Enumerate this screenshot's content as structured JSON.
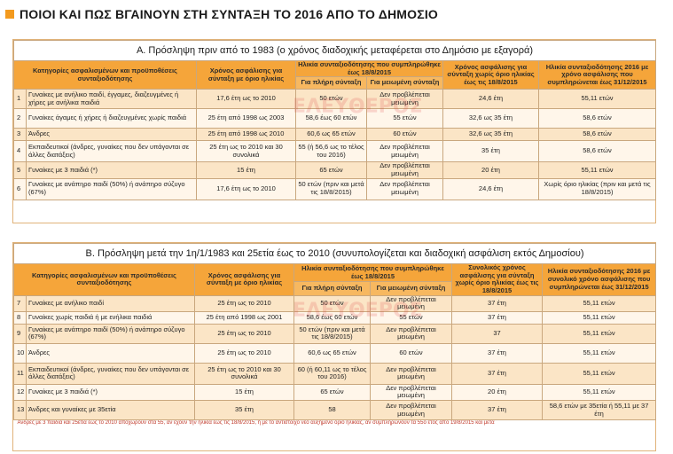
{
  "page_title": "ΠΟΙΟΙ ΚΑΙ ΠΩΣ ΒΓΑΙΝΟΥΝ ΣΤΗ ΣΥΝΤΑΞΗ ΤΟ 2016 ΑΠΟ ΤΟ ΔΗΜΟΣΙΟ",
  "watermark": "ΕΛΕΥΘΕΡΟΣ",
  "blockA": {
    "title": "Α. Πρόσληψη πριν από το 1983 (ο χρόνος διαδοχικής μεταφέρεται στο Δημόσιο με εξαγορά)",
    "headers": {
      "category": "Κατηγορίες ασφαλισμένων και προϋποθέσεις συνταξιοδότησης",
      "insurance_time": "Χρόνος ασφάλισης για σύνταξη με όριο ηλικίας",
      "age_group": "Ηλικία συνταξιοδότησης που συμπληρώθηκε έως 18/8/2015",
      "full": "Για πλήρη σύνταξη",
      "reduced": "Για μειωμένη σύνταξη",
      "time_no_limit": "Χρόνος ασφάλισης για σύνταξη χωρίς όριο ηλικίας έως τις 18/8/2015",
      "age_2016": "Ηλικία συνταξιοδότησης 2016 με χρόνο ασφάλισης που συμπληρώνεται έως 31/12/2015"
    },
    "rows": [
      {
        "n": "1",
        "cat": "Γυναίκες με ανήλικο παιδί, έγγαμες, διαζευγμένες ή χήρες με ανήλικα παιδιά",
        "ins": "17,6 έτη ως το 2010",
        "full": "50 ετών",
        "red": "Δεν προβλέπεται μειωμένη",
        "tnl": "24,6 έτη",
        "age": "55,11 ετών"
      },
      {
        "n": "2",
        "cat": "Γυναίκες άγαμες ή χήρες ή διαζευγμένες χωρίς παιδιά",
        "ins": "25 έτη από 1998 ως 2003",
        "full": "58,6 έως 60 ετών",
        "red": "55 ετών",
        "tnl": "32,6 ως 35 έτη",
        "age": "58,6 ετών"
      },
      {
        "n": "3",
        "cat": "Άνδρες",
        "ins": "25 έτη από 1998 ως 2010",
        "full": "60,6 ως 65 ετών",
        "red": "60 ετών",
        "tnl": "32,6 ως 35 έτη",
        "age": "58,6 ετών"
      },
      {
        "n": "4",
        "cat": "Εκπαιδευτικοί (άνδρες, γυναίκες που δεν υπάγονται σε άλλες διατάξεις)",
        "ins": "25 έτη ως το 2010 και 30 συνολικά",
        "full": "55 (ή 56,6 ως το τέλος του 2016)",
        "red": "Δεν προβλέπεται μειωμένη",
        "tnl": "35 έτη",
        "age": "58,6 ετών"
      },
      {
        "n": "5",
        "cat": "Γυναίκες με 3 παιδιά (*)",
        "ins": "15 έτη",
        "full": "65 ετών",
        "red": "Δεν προβλέπεται μειωμένη",
        "tnl": "20 έτη",
        "age": "55,11 ετών"
      },
      {
        "n": "6",
        "cat": "Γυναίκες με ανάπηρο παιδί (50%) ή ανάπηρο σύζυγο (67%)",
        "ins": "17,6 έτη ως το 2010",
        "full": "50 ετών (πριν και μετά τις 18/8/2015)",
        "red": "Δεν προβλέπεται μειωμένη",
        "tnl": "24,6 έτη",
        "age": "Χωρίς όριο ηλικίας (πριν και μετά τις 18/8/2015)"
      }
    ]
  },
  "blockB": {
    "title": "Β. Πρόσληψη μετά την 1η/1/1983 και 25ετία έως το 2010 (συνυπολογίζεται και διαδοχική ασφάλιση εκτός Δημοσίου)",
    "headers": {
      "category": "Κατηγορίες ασφαλισμένων και προϋποθέσεις συνταξιοδότησης",
      "insurance_time": "Χρόνος ασφάλισης για σύνταξη με όριο ηλικίας",
      "age_group": "Ηλικία συνταξιοδότησης που συμπληρώθηκε έως 18/8/2015",
      "full": "Για πλήρη σύνταξη",
      "reduced": "Για μειωμένη σύνταξη",
      "time_no_limit": "Συνολικός χρόνος ασφάλισης για σύνταξη χωρίς όριο ηλικίας έως τις 18/8/2015",
      "age_2016": "Ηλικία συνταξιοδότησης 2016 με συνολικό χρόνο ασφάλισης που συμπληρώνεται έως 31/12/2015"
    },
    "rows": [
      {
        "n": "7",
        "cat": "Γυναίκες με ανήλικο παιδί",
        "ins": "25 έτη ως το 2010",
        "full": "50 ετών",
        "red": "Δεν προβλέπεται μειωμένη",
        "tnl": "37 έτη",
        "age": "55,11 ετών"
      },
      {
        "n": "8",
        "cat": "Γυναίκες χωρίς παιδιά ή με ενήλικα παιδιά",
        "ins": "25 έτη από 1998 ως 2001",
        "full": "58,6 έως 60 ετών",
        "red": "55 ετών",
        "tnl": "37 έτη",
        "age": "55,11 ετών"
      },
      {
        "n": "9",
        "cat": "Γυναίκες με ανάπηρο παιδί (50%) ή ανάπηρο σύζυγο (67%)",
        "ins": "25 έτη ως το 2010",
        "full": "50 ετών (πριν και μετά τις 18/8/2015)",
        "red": "Δεν προβλέπεται μειωμένη",
        "tnl": "37",
        "age": "55,11 ετών"
      },
      {
        "n": "10",
        "cat": "Άνδρες",
        "ins": "25 έτη ως το 2010",
        "full": "60,6 ως 65 ετών",
        "red": "60 ετών",
        "tnl": "37 έτη",
        "age": "55,11 ετών"
      },
      {
        "n": "11",
        "cat": "Εκπαιδευτικοί (άνδρες, γυναίκες που δεν υπάγονται σε άλλες διατάξεις)",
        "ins": "25 έτη ως το 2010 και 30 συνολικά",
        "full": "60 (ή 60,11 ως το τέλος του 2016)",
        "red": "Δεν προβλέπεται μειωμένη",
        "tnl": "37 έτη",
        "age": "55,11 ετών"
      },
      {
        "n": "12",
        "cat": "Γυναίκες με 3 παιδιά (*)",
        "ins": "15 έτη",
        "full": "65 ετών",
        "red": "Δεν προβλέπεται μειωμένη",
        "tnl": "20 έτη",
        "age": "55,11 ετών"
      },
      {
        "n": "13",
        "cat": "Άνδρες και γυναίκες με 35ετία",
        "ins": "35 έτη",
        "full": "58",
        "red": "Δεν προβλέπεται μειωμένη",
        "tnl": "37 έτη",
        "age": "58,6 ετών με 35ετία ή 55,11 με 37 έτη"
      }
    ],
    "note": "Ανδρες με 3 παιδιά και 25ετία έως το 2010 αποχωρούν στα 55, αν έχουν την ηλικία έως τις 18/8/2015, ή με το αντίστοιχο νέο αυξημένο όριο ηλικίας, αν συμπληρώνουν τα 55ο έτος από 19/8/2015 και μετά"
  }
}
